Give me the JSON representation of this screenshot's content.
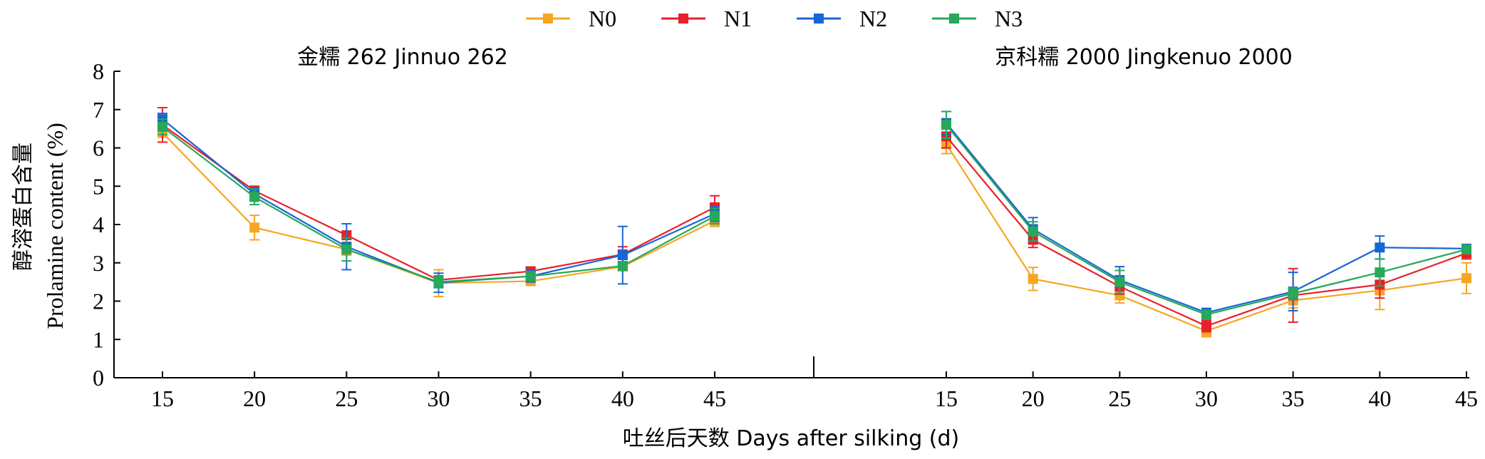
{
  "legend": [
    {
      "name": "N0",
      "color": "#F5A623"
    },
    {
      "name": "N1",
      "color": "#E8202A"
    },
    {
      "name": "N2",
      "color": "#1766D6"
    },
    {
      "name": "N3",
      "color": "#27A85A"
    }
  ],
  "y_axis": {
    "label_cn": "醇溶蛋白含量",
    "label_en": "Prolamine content (%)",
    "ticks": [
      "0",
      "1",
      "2",
      "3",
      "4",
      "5",
      "6",
      "7",
      "8"
    ]
  },
  "x_axis": {
    "label": "吐丝后天数 Days after silking (d)",
    "ticks": [
      "15",
      "20",
      "25",
      "30",
      "35",
      "40",
      "45"
    ]
  },
  "chart_data": [
    {
      "type": "line",
      "title": "金糯 262 Jinnuo 262",
      "x": [
        15,
        20,
        25,
        30,
        35,
        40,
        45
      ],
      "ylim": [
        0,
        8
      ],
      "series": [
        {
          "name": "N0",
          "values": [
            6.4,
            3.92,
            3.35,
            2.47,
            2.52,
            2.9,
            4.1
          ],
          "errors": [
            0.12,
            0.32,
            0.15,
            0.35,
            0.1,
            0.1,
            0.15
          ]
        },
        {
          "name": "N1",
          "values": [
            6.6,
            4.88,
            3.72,
            2.55,
            2.78,
            3.22,
            4.45
          ],
          "errors": [
            0.45,
            0.12,
            0.1,
            0.1,
            0.1,
            0.2,
            0.3
          ]
        },
        {
          "name": "N2",
          "values": [
            6.75,
            4.8,
            3.42,
            2.48,
            2.65,
            3.2,
            4.28
          ],
          "errors": [
            0.15,
            0.15,
            0.6,
            0.25,
            0.15,
            0.75,
            0.2
          ]
        },
        {
          "name": "N3",
          "values": [
            6.55,
            4.72,
            3.35,
            2.5,
            2.65,
            2.92,
            4.22
          ],
          "errors": [
            0.2,
            0.2,
            0.3,
            0.15,
            0.12,
            0.1,
            0.2
          ]
        }
      ]
    },
    {
      "type": "line",
      "title": "京科糯 2000 Jingkenuo 2000",
      "x": [
        15,
        20,
        25,
        30,
        35,
        40,
        45
      ],
      "ylim": [
        0,
        8
      ],
      "series": [
        {
          "name": "N0",
          "values": [
            6.1,
            2.58,
            2.15,
            1.22,
            2.02,
            2.28,
            2.6
          ],
          "errors": [
            0.25,
            0.3,
            0.2,
            0.15,
            0.2,
            0.5,
            0.4
          ]
        },
        {
          "name": "N1",
          "values": [
            6.3,
            3.6,
            2.38,
            1.35,
            2.15,
            2.43,
            3.25
          ],
          "errors": [
            0.3,
            0.2,
            0.2,
            0.15,
            0.7,
            0.35,
            0.15
          ]
        },
        {
          "name": "N2",
          "values": [
            6.65,
            3.88,
            2.55,
            1.7,
            2.25,
            3.4,
            3.37
          ],
          "errors": [
            0.3,
            0.3,
            0.35,
            0.1,
            0.5,
            0.3,
            0.1
          ]
        },
        {
          "name": "N3",
          "values": [
            6.6,
            3.82,
            2.5,
            1.65,
            2.2,
            2.75,
            3.35
          ],
          "errors": [
            0.35,
            0.25,
            0.3,
            0.1,
            0.15,
            0.35,
            0.1
          ]
        }
      ]
    }
  ]
}
